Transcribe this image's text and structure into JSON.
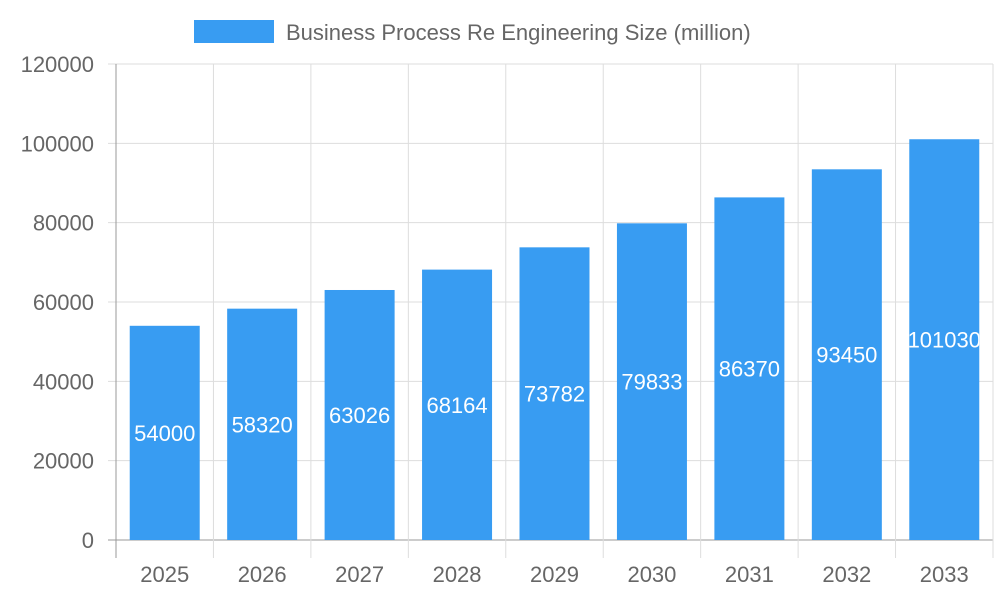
{
  "chart_data": {
    "type": "bar",
    "categories": [
      "2025",
      "2026",
      "2027",
      "2028",
      "2029",
      "2030",
      "2031",
      "2032",
      "2033"
    ],
    "series": [
      {
        "name": "Business Process Re Engineering Size (million)",
        "values": [
          54000,
          58320,
          63026,
          68164,
          73782,
          79833,
          86370,
          93450,
          101030
        ],
        "color": "#389cf2"
      }
    ],
    "ylim": [
      0,
      120000
    ],
    "yticks": [
      0,
      20000,
      40000,
      60000,
      80000,
      100000,
      120000
    ],
    "grid": true,
    "legend": "top",
    "data_labels": true
  }
}
